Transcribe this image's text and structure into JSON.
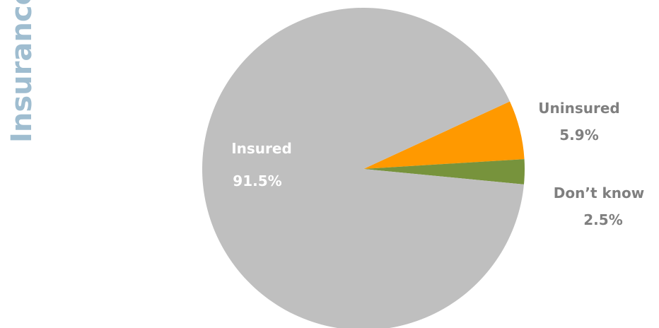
{
  "side_title": "Insurance",
  "chart_data": {
    "type": "pie",
    "title": "",
    "slices": [
      {
        "label": "Uninsured",
        "value": 5.9,
        "display": "5.9%",
        "color": "#ff9900"
      },
      {
        "label": "Don’t know",
        "value": 2.5,
        "display": "2.5%",
        "color": "#77933c"
      },
      {
        "label": "Insured",
        "value": 91.5,
        "display": "91.5%",
        "color": "#bfbfbf"
      }
    ],
    "label_colors": {
      "inside": "#ffffff",
      "outside": "#7f7f7f"
    }
  }
}
